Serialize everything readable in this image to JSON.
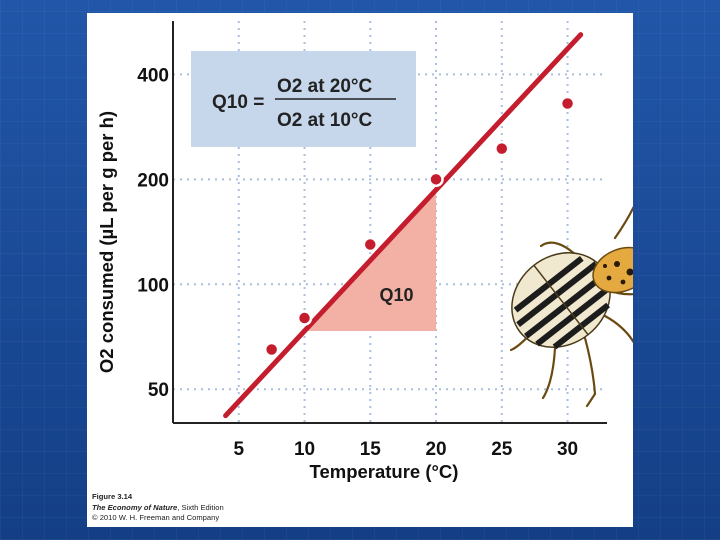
{
  "chart_data": {
    "type": "scatter",
    "xlabel": "Temperature (°C)",
    "ylabel": "O2 consumed (µL per g per h)",
    "x_ticks": [
      "5",
      "10",
      "15",
      "20",
      "25",
      "30"
    ],
    "y_ticks": [
      "50",
      "100",
      "200",
      "400"
    ],
    "y_scale": "log",
    "xlim": [
      0,
      33
    ],
    "ylim": [
      40,
      600
    ],
    "grid": true,
    "points": [
      {
        "x": 7.5,
        "y": 65
      },
      {
        "x": 10,
        "y": 80
      },
      {
        "x": 15,
        "y": 130
      },
      {
        "x": 20,
        "y": 200
      },
      {
        "x": 25,
        "y": 245
      },
      {
        "x": 30,
        "y": 330
      }
    ],
    "fit_line": {
      "x": [
        4,
        31
      ],
      "y": [
        42,
        520
      ]
    },
    "q10_triangle": {
      "x_from": 10,
      "x_to": 20,
      "label": "Q10"
    },
    "formula": {
      "lhs": "Q10 =",
      "numerator": "O2 at 20°C",
      "denominator": "O2 at 10°C"
    },
    "colors": {
      "line": "#c41e2e",
      "point": "#c41e2e",
      "triangle": "#f3b1a6",
      "formula_box": "#c6d7ec",
      "grid": "#a9bfdc"
    }
  },
  "caption": {
    "figure": "Figure 3.14",
    "book": "The Economy of Nature",
    "edition": ", Sixth Edition",
    "copyright": "© 2010 W. H. Freeman and Company"
  },
  "illustration": {
    "icon": "beetle-icon"
  }
}
